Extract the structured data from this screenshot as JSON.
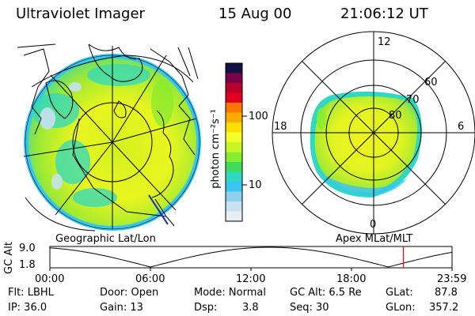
{
  "header": {
    "instrument": "Ultraviolet Imager",
    "date": "15 Aug 00",
    "time": "21:06:12 UT"
  },
  "colorbar": {
    "unit_label": "photon cm⁻²s⁻¹",
    "ticks": [
      "100",
      "10"
    ],
    "colors": [
      "#111144",
      "#7a004a",
      "#b80028",
      "#e2001e",
      "#ff7700",
      "#ffaa00",
      "#ffdd00",
      "#f2ff2a",
      "#c5f523",
      "#84ee2c",
      "#3fdc5a",
      "#2fd8c2",
      "#3ac6f1",
      "#8ed0ee",
      "#c8e0f0",
      "#e6eef4"
    ]
  },
  "geo_panel": {
    "label": "Geographic Lat/Lon"
  },
  "polar_panel": {
    "label": "Apex MLat/MLT",
    "mlt_labels": {
      "top": "12",
      "left": "18",
      "right": "6",
      "bottom": "0"
    },
    "lat_labels": [
      "60",
      "70",
      "80"
    ]
  },
  "orbit": {
    "ylabel": "GC Alt",
    "yticks": [
      "9.0",
      "1.8"
    ],
    "xticks": [
      "00:00",
      "06:00",
      "12:00",
      "18:00",
      "23:59"
    ],
    "current_marker_hours": 21.1
  },
  "info": {
    "flt": "Flt: LBHL",
    "ip": "IP: 36.0",
    "door": "Door: Open",
    "gain": "Gain: 13",
    "mode": "Mode: Normal",
    "dsp": "Dsp:",
    "dsp_value": "3.8",
    "gcalt": "GC Alt: 6.5 Re",
    "seq": "Seq: 30",
    "glat": "GLat:",
    "glat_value": "87.8",
    "glon": "GLon:",
    "glon_value": "357.2"
  }
}
